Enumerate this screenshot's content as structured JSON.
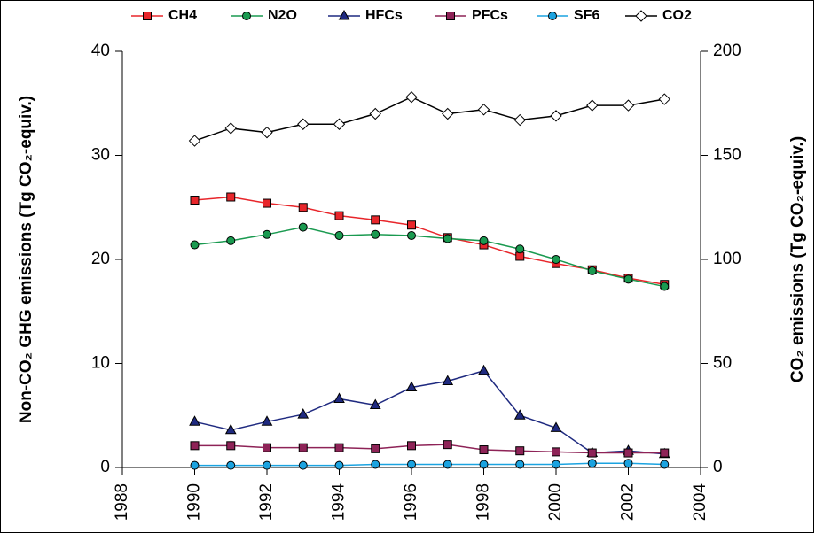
{
  "chart_data": {
    "type": "line",
    "ylabel": "Non-CO₂ GHG emissions (Tg CO₂-equiv.)",
    "y2label": "CO₂ emissions (Tg CO₂-equiv.)",
    "x": [
      1990,
      1991,
      1992,
      1993,
      1994,
      1995,
      1996,
      1997,
      1998,
      1999,
      2000,
      2001,
      2002,
      2003
    ],
    "xlim": [
      1988,
      2004
    ],
    "xticks": [
      1988,
      1990,
      1992,
      1994,
      1996,
      1998,
      2000,
      2002,
      2004
    ],
    "ylim": [
      0,
      40
    ],
    "yticks": [
      0,
      10,
      20,
      30,
      40
    ],
    "y2lim": [
      0,
      200
    ],
    "y2ticks": [
      0,
      50,
      100,
      150,
      200
    ],
    "legend": "top",
    "series": [
      {
        "name": "CH4",
        "color": "#e8262b",
        "marker": "square",
        "values": [
          25.7,
          26.0,
          25.4,
          25.0,
          24.2,
          23.8,
          23.3,
          22.1,
          21.4,
          20.3,
          19.6,
          19.0,
          18.2,
          17.6
        ]
      },
      {
        "name": "N2O",
        "color": "#1a9a50",
        "marker": "circle",
        "values": [
          21.4,
          21.8,
          22.4,
          23.1,
          22.3,
          22.4,
          22.3,
          22.0,
          21.8,
          21.0,
          20.0,
          18.9,
          18.1,
          17.4
        ]
      },
      {
        "name": "HFCs",
        "color": "#1f2a80",
        "marker": "triangle",
        "values": [
          4.4,
          3.6,
          4.4,
          5.1,
          6.6,
          6.0,
          7.7,
          8.3,
          9.3,
          5.0,
          3.8,
          1.4,
          1.6,
          1.3
        ]
      },
      {
        "name": "PFCs",
        "color": "#8e2357",
        "marker": "square",
        "values": [
          2.1,
          2.1,
          1.9,
          1.9,
          1.9,
          1.8,
          2.1,
          2.2,
          1.7,
          1.6,
          1.5,
          1.4,
          1.4,
          1.4
        ]
      },
      {
        "name": "SF6",
        "color": "#1ba3e0",
        "marker": "circle",
        "values": [
          0.2,
          0.2,
          0.2,
          0.2,
          0.2,
          0.3,
          0.3,
          0.3,
          0.3,
          0.3,
          0.3,
          0.4,
          0.4,
          0.3
        ]
      },
      {
        "name": "CO2",
        "color": "#000000",
        "marker": "diamond",
        "axis": "y2",
        "values": [
          157,
          163,
          161,
          165,
          165,
          170,
          178,
          170,
          172,
          167,
          169,
          174,
          174,
          177
        ]
      }
    ]
  }
}
